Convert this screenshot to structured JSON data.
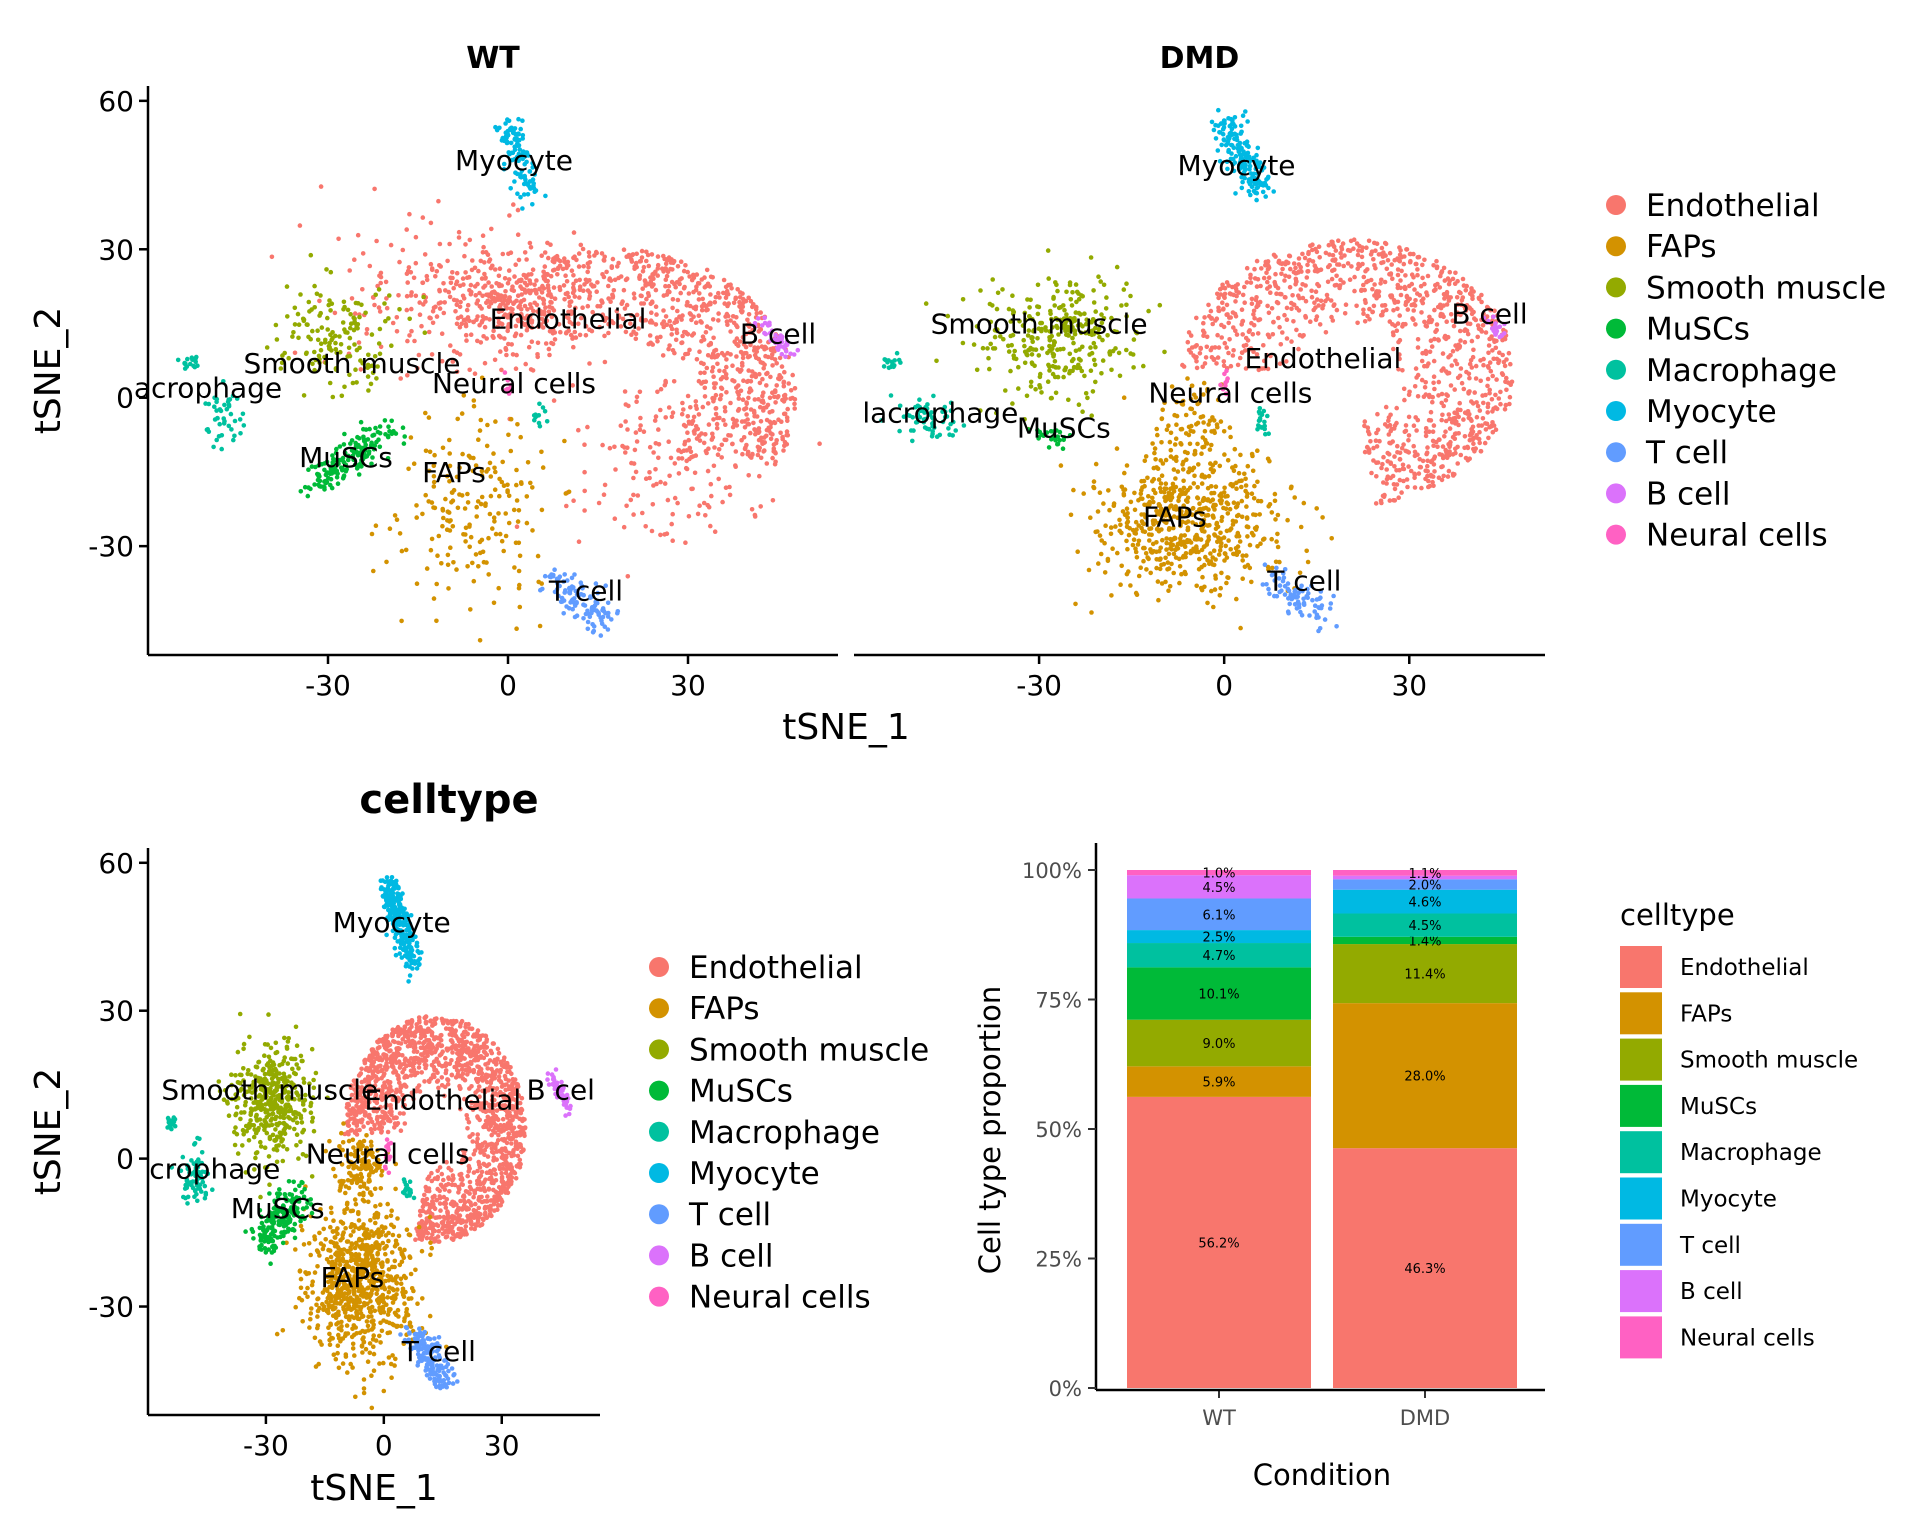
{
  "colors": {
    "Endothelial": "#F8766D",
    "FAPs": "#D39200",
    "Smooth muscle": "#93AA00",
    "MuSCs": "#00BA38",
    "Macrophage": "#00C19F",
    "Myocyte": "#00B9E3",
    "T cell": "#619CFF",
    "B cell": "#DB72FB",
    "Neural cells": "#FF61C3"
  },
  "chart_data": [
    {
      "type": "scatter",
      "title": "WT",
      "xlabel": "tSNE_1",
      "ylabel": "tSNE_2",
      "xlim": [
        -60,
        55
      ],
      "ylim": [
        -52,
        63
      ],
      "x_ticks": [
        "-30",
        "0",
        "30"
      ],
      "y_ticks": [
        "60",
        "30",
        "0",
        "-30"
      ],
      "legend": [
        "Endothelial",
        "FAPs",
        "Smooth muscle",
        "MuSCs",
        "Macrophage",
        "Myocyte",
        "T cell",
        "B cell",
        "Neural cells"
      ],
      "clusters": [
        {
          "name": "Endothelial",
          "label": "Endothelial",
          "label_x": 10,
          "label_y": 14
        },
        {
          "name": "FAPs",
          "label": "FAPs",
          "label_x": -9,
          "label_y": -17
        },
        {
          "name": "Smooth muscle",
          "label": "Smooth muscle",
          "label_x": -26,
          "label_y": 5
        },
        {
          "name": "MuSCs",
          "label": "MuSCs",
          "label_x": -27,
          "label_y": -14
        },
        {
          "name": "Macrophage",
          "label": "acrophage",
          "label_x": -50,
          "label_y": 0
        },
        {
          "name": "Myocyte",
          "label": "Myocyte",
          "label_x": 1,
          "label_y": 46
        },
        {
          "name": "T cell",
          "label": "T cell",
          "label_x": 13,
          "label_y": -41
        },
        {
          "name": "B cell",
          "label": "B cell",
          "label_x": 45,
          "label_y": 11
        },
        {
          "name": "Neural cells",
          "label": "Neural cells",
          "label_x": 1,
          "label_y": 1
        }
      ]
    },
    {
      "type": "scatter",
      "title": "DMD",
      "xlabel": "tSNE_1",
      "ylabel": "tSNE_2",
      "xlim": [
        -60,
        52
      ],
      "ylim": [
        -52,
        63
      ],
      "x_ticks": [
        "-30",
        "0",
        "30"
      ],
      "y_ticks": [
        "60",
        "30",
        "0",
        "-30"
      ],
      "legend": [
        "Endothelial",
        "FAPs",
        "Smooth muscle",
        "MuSCs",
        "Macrophage",
        "Myocyte",
        "T cell",
        "B cell",
        "Neural cells"
      ],
      "clusters": [
        {
          "name": "Endothelial",
          "label": "Endothelial",
          "label_x": 16,
          "label_y": 6
        },
        {
          "name": "FAPs",
          "label": "FAPs",
          "label_x": -8,
          "label_y": -26
        },
        {
          "name": "Smooth muscle",
          "label": "Smooth muscle",
          "label_x": -30,
          "label_y": 13
        },
        {
          "name": "MuSCs",
          "label": "MuSCs",
          "label_x": -26,
          "label_y": -8
        },
        {
          "name": "Macrophage",
          "label": "lacrophage",
          "label_x": -46,
          "label_y": -5
        },
        {
          "name": "Myocyte",
          "label": "Myocyte",
          "label_x": 2,
          "label_y": 45
        },
        {
          "name": "T cell",
          "label": "T cell",
          "label_x": 13,
          "label_y": -39
        },
        {
          "name": "B cell",
          "label": "B cell",
          "label_x": 43,
          "label_y": 15
        },
        {
          "name": "Neural cells",
          "label": "Neural cells",
          "label_x": 1,
          "label_y": -1
        }
      ]
    },
    {
      "type": "scatter",
      "title": "celltype",
      "xlabel": "tSNE_1",
      "ylabel": "tSNE_2",
      "xlim": [
        -60,
        55
      ],
      "ylim": [
        -52,
        63
      ],
      "x_ticks": [
        "-30",
        "0",
        "30"
      ],
      "y_ticks": [
        "60",
        "30",
        "0",
        "-30"
      ],
      "legend": [
        "Endothelial",
        "FAPs",
        "Smooth muscle",
        "MuSCs",
        "Macrophage",
        "Myocyte",
        "T cell",
        "B cell",
        "Neural cells"
      ],
      "clusters": [
        {
          "name": "Endothelial",
          "label": "Endothelial",
          "label_x": 15,
          "label_y": 10
        },
        {
          "name": "FAPs",
          "label": "FAPs",
          "label_x": -8,
          "label_y": -26
        },
        {
          "name": "Smooth muscle",
          "label": "Smooth muscle",
          "label_x": -29,
          "label_y": 12
        },
        {
          "name": "MuSCs",
          "label": "MuSCs",
          "label_x": -27,
          "label_y": -12
        },
        {
          "name": "Macrophage",
          "label": "crophage",
          "label_x": -43,
          "label_y": -4
        },
        {
          "name": "Myocyte",
          "label": "Myocyte",
          "label_x": 2,
          "label_y": 46
        },
        {
          "name": "T cell",
          "label": "T cell",
          "label_x": 14,
          "label_y": -41
        },
        {
          "name": "B cell",
          "label": "B cel",
          "label_x": 45,
          "label_y": 12
        },
        {
          "name": "Neural cells",
          "label": "Neural cells",
          "label_x": 1,
          "label_y": -1
        }
      ]
    },
    {
      "type": "bar",
      "stacked": true,
      "xlabel": "Condition",
      "ylabel": "Cell type proportion",
      "categories": [
        "WT",
        "DMD"
      ],
      "y_ticks": [
        "0%",
        "25%",
        "50%",
        "75%",
        "100%"
      ],
      "legend_title": "celltype",
      "series": [
        {
          "name": "Endothelial",
          "values": [
            56.2,
            46.3
          ],
          "labels": [
            "56.2%",
            "46.3%"
          ]
        },
        {
          "name": "FAPs",
          "values": [
            5.9,
            28.0
          ],
          "labels": [
            "5.9%",
            "28.0%"
          ]
        },
        {
          "name": "Smooth muscle",
          "values": [
            9.0,
            11.4
          ],
          "labels": [
            "9.0%",
            "11.4%"
          ]
        },
        {
          "name": "MuSCs",
          "values": [
            10.1,
            1.4
          ],
          "labels": [
            "10.1%",
            "1.4%"
          ]
        },
        {
          "name": "Macrophage",
          "values": [
            4.7,
            4.5
          ],
          "labels": [
            "4.7%",
            "4.5%"
          ]
        },
        {
          "name": "Myocyte",
          "values": [
            2.5,
            4.6
          ],
          "labels": [
            "2.5%",
            "4.6%"
          ]
        },
        {
          "name": "T cell",
          "values": [
            6.1,
            2.0
          ],
          "labels": [
            "6.1%",
            "2.0%"
          ]
        },
        {
          "name": "B cell",
          "values": [
            4.5,
            0.7
          ],
          "labels": [
            "4.5%",
            ""
          ]
        },
        {
          "name": "Neural cells",
          "values": [
            1.0,
            1.1
          ],
          "labels": [
            "1.0%",
            "1.1%"
          ]
        }
      ]
    }
  ]
}
